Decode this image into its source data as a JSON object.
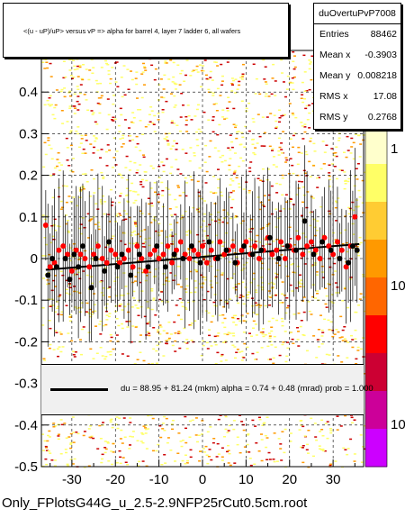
{
  "title": "<(u - uP)/uP> versus   vP => alpha for barrel 4, layer 7 ladder 6, all wafers",
  "footer": "Only_FPlotsG44G_u_2.5-2.9NFP25rCut0.5cm.root",
  "stats": {
    "name": "duOvertuPvP7008",
    "rows": [
      {
        "label": "Entries",
        "value": "88462"
      },
      {
        "label": "Mean x",
        "value": "-0.3903"
      },
      {
        "label": "Mean y",
        "value": "0.008218"
      },
      {
        "label": "RMS x",
        "value": "17.08"
      },
      {
        "label": "RMS y",
        "value": "0.2768"
      }
    ]
  },
  "fit": {
    "text": "du =    88.95 +  81.24 (mkm) alpha =    0.74 +   0.48 (mrad) prob = 1.000"
  },
  "palette_labels": [
    "1",
    "10",
    "10"
  ],
  "colors": {
    "frame": "#000000",
    "red_points": "#ff0000",
    "black_points": "#000000",
    "fit_line": "#000000",
    "fit_box_bg": "#f0f0f0",
    "heat_low": "#ffff66",
    "heat_mid": "#ff9900",
    "heat_high": "#cc0000",
    "palette_high": "#cc00ff"
  },
  "chart_data": {
    "type": "scatter",
    "title": "<(u - uP)/uP> versus   vP => alpha for barrel 4, layer 7 ladder 6, all wafers",
    "xlabel": "",
    "ylabel": "",
    "xlim": [
      -37,
      37
    ],
    "ylim": [
      -0.5,
      0.5
    ],
    "xticks": [
      -30,
      -20,
      -10,
      0,
      10,
      20,
      30
    ],
    "yticks": [
      -0.5,
      -0.4,
      -0.3,
      -0.2,
      -0.1,
      0,
      0.1,
      0.2,
      0.3,
      0.4
    ],
    "ytick_labels": [
      "-0.5",
      "-0.4",
      "-0.3",
      "-0.2",
      "-0.1",
      "0",
      "0.1",
      "0.2",
      "0.3",
      "0.4"
    ],
    "grid": true,
    "fit_line": {
      "x": [
        -36,
        36
      ],
      "y": [
        -0.027,
        0.035
      ]
    },
    "series": [
      {
        "points": [
          [
            -36,
            0.08
          ],
          [
            -35,
            -0.02
          ],
          [
            -34,
            -0.01
          ],
          [
            -33,
            0.02
          ],
          [
            -32,
            0.03
          ],
          [
            -31,
            0.01
          ],
          [
            -30,
            -0.03
          ],
          [
            -29,
            0.02
          ],
          [
            -28,
            0.01
          ],
          [
            -27,
            0.0
          ],
          [
            -26,
            -0.02
          ],
          [
            -25,
            0.01
          ],
          [
            -24,
            0.03
          ],
          [
            -23,
            0.0
          ],
          [
            -22,
            -0.01
          ],
          [
            -21,
            0.02
          ],
          [
            -20,
            0.01
          ],
          [
            -19,
            -0.01
          ],
          [
            -18,
            0.0
          ],
          [
            -17,
            0.02
          ],
          [
            -16,
            -0.02
          ],
          [
            -15,
            0.03
          ],
          [
            -14,
            0.0
          ],
          [
            -13,
            -0.03
          ],
          [
            -12,
            0.01
          ],
          [
            -11,
            0.02
          ],
          [
            -10,
            0.0
          ],
          [
            -9,
            0.01
          ],
          [
            -8,
            0.03
          ],
          [
            -7,
            -0.01
          ],
          [
            -6,
            0.02
          ],
          [
            -5,
            0.04
          ],
          [
            -4,
            0.01
          ],
          [
            -3,
            0.0
          ],
          [
            -2,
            0.02
          ],
          [
            -1,
            0.01
          ],
          [
            0,
            0.03
          ],
          [
            1,
            -0.01
          ],
          [
            2,
            0.02
          ],
          [
            3,
            0.0
          ],
          [
            4,
            0.04
          ],
          [
            5,
            0.01
          ],
          [
            6,
            0.02
          ],
          [
            7,
            0.03
          ],
          [
            8,
            -0.01
          ],
          [
            9,
            0.02
          ],
          [
            10,
            0.04
          ],
          [
            11,
            0.01
          ],
          [
            12,
            0.03
          ],
          [
            13,
            0.0
          ],
          [
            14,
            0.02
          ],
          [
            15,
            0.05
          ],
          [
            16,
            0.01
          ],
          [
            17,
            0.02
          ],
          [
            18,
            0.04
          ],
          [
            19,
            0.0
          ],
          [
            20,
            0.03
          ],
          [
            21,
            0.02
          ],
          [
            22,
            0.05
          ],
          [
            23,
            0.01
          ],
          [
            24,
            0.03
          ],
          [
            25,
            0.04
          ],
          [
            26,
            0.02
          ],
          [
            27,
            0.0
          ],
          [
            28,
            0.05
          ],
          [
            29,
            0.03
          ],
          [
            30,
            0.01
          ],
          [
            31,
            0.04
          ],
          [
            32,
            0.02
          ],
          [
            33,
            -0.02
          ],
          [
            34,
            0.03
          ],
          [
            35,
            0.1
          ]
        ]
      },
      {
        "points": [
          [
            -35.5,
            -0.04
          ],
          [
            -34.5,
            0.0
          ],
          [
            -33.5,
            -0.02
          ],
          [
            -31.5,
            0.0
          ],
          [
            -30.5,
            -0.05
          ],
          [
            -29.5,
            0.01
          ],
          [
            -28.5,
            -0.02
          ],
          [
            -27.5,
            0.03
          ],
          [
            -25.5,
            -0.07
          ],
          [
            -24.5,
            0.0
          ],
          [
            -22.5,
            -0.03
          ],
          [
            -21.5,
            0.04
          ],
          [
            -19.5,
            -0.02
          ],
          [
            -18.5,
            0.01
          ],
          [
            -16.5,
            -0.04
          ],
          [
            -14.5,
            0.01
          ],
          [
            -12.5,
            -0.02
          ],
          [
            -10.5,
            0.03
          ],
          [
            -8.5,
            -0.02
          ],
          [
            -6.5,
            0.01
          ],
          [
            -4.5,
            0.0
          ],
          [
            -2.5,
            0.03
          ],
          [
            -0.5,
            -0.01
          ],
          [
            1.5,
            0.04
          ],
          [
            3.5,
            0.0
          ],
          [
            5.5,
            0.02
          ],
          [
            7.5,
            -0.01
          ],
          [
            9.5,
            0.03
          ],
          [
            11.5,
            0.01
          ],
          [
            13.5,
            0.02
          ],
          [
            15.5,
            0.05
          ],
          [
            17.5,
            0.0
          ],
          [
            19.5,
            0.03
          ],
          [
            21.5,
            0.02
          ],
          [
            23.5,
            0.09
          ],
          [
            25.5,
            0.01
          ],
          [
            27.5,
            0.04
          ],
          [
            29.5,
            0.02
          ],
          [
            31.5,
            0.0
          ],
          [
            33.5,
            -0.01
          ],
          [
            34.5,
            0.03
          ],
          [
            35.5,
            0.02
          ]
        ]
      }
    ]
  }
}
